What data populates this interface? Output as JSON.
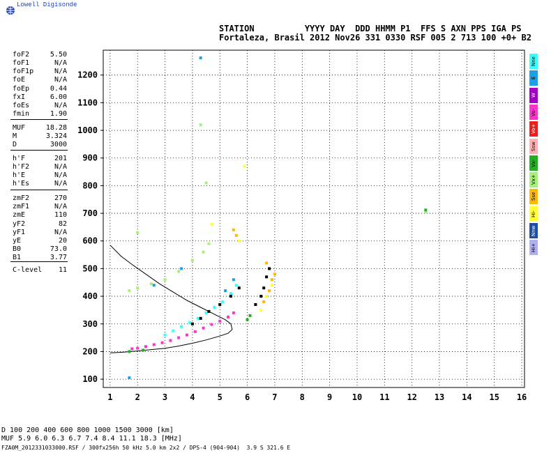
{
  "brand": "Lowell Digisonde",
  "header": {
    "top": "STATION          YYYY DAY  DDD HHMM P1  FFS S AXN PPS IGA PS",
    "bottom": "Fortaleza, Brasil 2012 Nov26 331 0330 RSF 005 2 713 100 +0+ B2"
  },
  "params": [
    {
      "label": "foF2",
      "value": "5.50"
    },
    {
      "label": "foF1",
      "value": "N/A"
    },
    {
      "label": "foF1p",
      "value": "N/A"
    },
    {
      "label": "foE",
      "value": "N/A"
    },
    {
      "label": "foEp",
      "value": "0.44"
    },
    {
      "label": "fxI",
      "value": "6.00"
    },
    {
      "label": "foEs",
      "value": "N/A"
    },
    {
      "label": "fmin",
      "value": "1.90"
    },
    {
      "label": "MUF",
      "value": "18.28"
    },
    {
      "label": "M",
      "value": "3.324"
    },
    {
      "label": "D",
      "value": "3000"
    },
    {
      "label": "h'F",
      "value": "201"
    },
    {
      "label": "h'F2",
      "value": "N/A"
    },
    {
      "label": "h'E",
      "value": "N/A"
    },
    {
      "label": "h'Es",
      "value": "N/A"
    },
    {
      "label": "zmF2",
      "value": "270"
    },
    {
      "label": "zmF1",
      "value": "N/A"
    },
    {
      "label": "zmE",
      "value": "110"
    },
    {
      "label": "yF2",
      "value": "82"
    },
    {
      "label": "yF1",
      "value": "N/A"
    },
    {
      "label": "yE",
      "value": "20"
    },
    {
      "label": "B0",
      "value": "73.0"
    },
    {
      "label": "B1",
      "value": "3.77"
    },
    {
      "label": "C-level",
      "value": "11"
    }
  ],
  "legend": [
    {
      "label": "Nne",
      "color": "#33ffff"
    },
    {
      "label": "E",
      "color": "#1a9fe8"
    },
    {
      "label": "W",
      "color": "#a000c8"
    },
    {
      "label": "Vo-",
      "color": "#ff33cc"
    },
    {
      "label": "Vo+",
      "color": "#ee1c1c"
    },
    {
      "label": "Ssw",
      "color": "#ffb0b0"
    },
    {
      "label": "Vx-",
      "color": "#22b022"
    },
    {
      "label": "Vx+",
      "color": "#a6f07a"
    },
    {
      "label": "Sse",
      "color": "#ffb800"
    },
    {
      "label": "Hi-",
      "color": "#ffff33"
    },
    {
      "label": "Nnw",
      "color": "#1e4fa8"
    },
    {
      "label": "Hi+",
      "color": "#b0b0f0"
    }
  ],
  "footer": {
    "d_row": "D     100   200   400   600   800  1000  1500  3000   [km]",
    "muf_row": "MUF   5.9   6.0   6.3   6.7   7.4   8.4  11.1  18.3   [MHz]",
    "file": "FZA0M_2012331033000.RSF / 300fx256h 50 kHz 5.0 km 2x2 / DPS-4 (904-904)  3.9 S 321.6 E"
  },
  "chart_data": {
    "type": "scatter",
    "title": "",
    "xlabel": "",
    "ylabel": "",
    "xlim": [
      0.75,
      16.1
    ],
    "ylim": [
      70,
      1290
    ],
    "grid": true,
    "x_ticks": [
      1,
      2,
      3,
      4,
      5,
      6,
      7,
      8,
      9,
      10,
      11,
      12,
      13,
      14,
      15,
      16
    ],
    "y_ticks": [
      100,
      200,
      300,
      400,
      500,
      600,
      700,
      800,
      900,
      1000,
      1100,
      1200
    ],
    "traces": [
      {
        "name": "O-trace F lower",
        "color": "#ff33cc",
        "points": [
          [
            1.8,
            210
          ],
          [
            2.0,
            212
          ],
          [
            2.3,
            218
          ],
          [
            2.6,
            225
          ],
          [
            2.9,
            232
          ],
          [
            3.2,
            240
          ],
          [
            3.5,
            250
          ],
          [
            3.8,
            260
          ],
          [
            4.1,
            272
          ],
          [
            4.4,
            285
          ],
          [
            4.7,
            298
          ],
          [
            5.0,
            310
          ],
          [
            5.3,
            325
          ],
          [
            5.5,
            340
          ]
        ]
      },
      {
        "name": "O-trace F upper",
        "color": "#33ffff",
        "points": [
          [
            3.0,
            260
          ],
          [
            3.3,
            275
          ],
          [
            3.6,
            290
          ],
          [
            3.9,
            305
          ],
          [
            4.2,
            320
          ],
          [
            4.5,
            340
          ],
          [
            4.8,
            360
          ],
          [
            5.1,
            380
          ],
          [
            5.4,
            410
          ],
          [
            5.6,
            440
          ]
        ]
      },
      {
        "name": "X-trace",
        "color": "#000000",
        "points": [
          [
            4.0,
            300
          ],
          [
            4.3,
            320
          ],
          [
            4.6,
            345
          ],
          [
            5.0,
            370
          ],
          [
            5.4,
            400
          ],
          [
            5.7,
            430
          ],
          [
            6.3,
            370
          ],
          [
            6.5,
            400
          ],
          [
            6.6,
            430
          ],
          [
            6.7,
            470
          ],
          [
            6.8,
            500
          ]
        ]
      },
      {
        "name": "Sse",
        "color": "#ffb800",
        "points": [
          [
            6.6,
            380
          ],
          [
            6.8,
            420
          ],
          [
            6.9,
            460
          ],
          [
            7.0,
            480
          ],
          [
            6.7,
            520
          ],
          [
            5.6,
            620
          ],
          [
            5.5,
            640
          ]
        ]
      },
      {
        "name": "Hi-",
        "color": "#ffff33",
        "points": [
          [
            6.5,
            350
          ],
          [
            6.7,
            400
          ],
          [
            6.9,
            440
          ],
          [
            5.7,
            600
          ],
          [
            5.9,
            870
          ],
          [
            4.7,
            660
          ]
        ]
      },
      {
        "name": "Oblique",
        "color": "#a6f07a",
        "points": [
          [
            1.7,
            420
          ],
          [
            2.0,
            430
          ],
          [
            2.5,
            445
          ],
          [
            3.0,
            460
          ],
          [
            3.5,
            490
          ],
          [
            4.0,
            530
          ],
          [
            4.4,
            560
          ],
          [
            4.6,
            590
          ],
          [
            2.0,
            630
          ],
          [
            12.5,
            705
          ],
          [
            4.5,
            810
          ],
          [
            4.3,
            1020
          ]
        ]
      },
      {
        "name": "Nne",
        "color": "#1a9fe8",
        "points": [
          [
            1.7,
            105
          ],
          [
            4.3,
            1262
          ],
          [
            2.6,
            440
          ],
          [
            3.6,
            500
          ],
          [
            5.2,
            420
          ],
          [
            5.5,
            460
          ]
        ]
      },
      {
        "name": "Vx-",
        "color": "#22b022",
        "points": [
          [
            1.7,
            200
          ],
          [
            2.2,
            205
          ],
          [
            6.0,
            315
          ],
          [
            6.1,
            330
          ],
          [
            12.5,
            712
          ]
        ]
      }
    ],
    "profile_curve": [
      [
        1.0,
        195
      ],
      [
        1.5,
        198
      ],
      [
        2.0,
        202
      ],
      [
        2.5,
        207
      ],
      [
        3.0,
        212
      ],
      [
        3.5,
        220
      ],
      [
        4.0,
        230
      ],
      [
        4.5,
        242
      ],
      [
        5.0,
        256
      ],
      [
        5.3,
        266
      ],
      [
        5.45,
        280
      ],
      [
        5.4,
        300
      ],
      [
        5.2,
        315
      ],
      [
        4.8,
        335
      ],
      [
        4.3,
        360
      ],
      [
        3.8,
        385
      ],
      [
        3.3,
        415
      ],
      [
        2.8,
        445
      ],
      [
        2.3,
        480
      ],
      [
        1.8,
        515
      ],
      [
        1.4,
        545
      ],
      [
        1.0,
        585
      ]
    ]
  }
}
